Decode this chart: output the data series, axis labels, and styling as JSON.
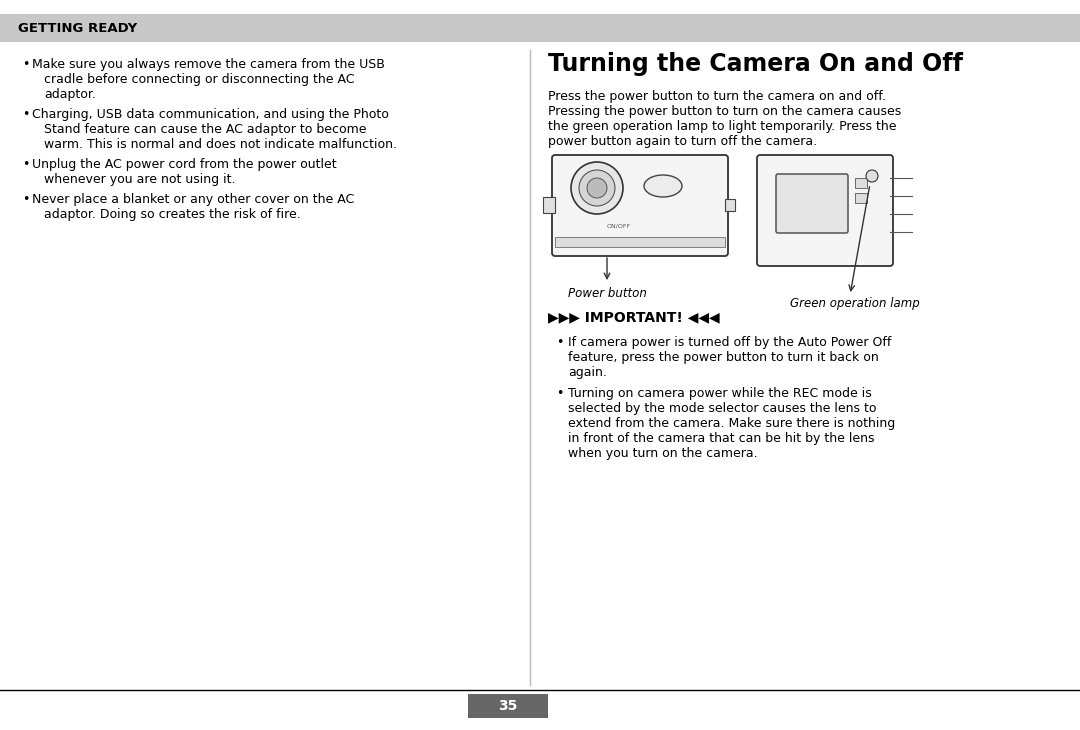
{
  "page_bg": "#ffffff",
  "header_bg": "#c8c8c8",
  "header_text": "GETTING READY",
  "header_text_color": "#000000",
  "divider_color": "#aaaaaa",
  "right_title": "Turning the Camera On and Off",
  "right_intro": "Press the power button to turn the camera on and off.\nPressing the power button to turn on the camera causes\nthe green operation lamp to light temporarily. Press the\npower button again to turn off the camera.",
  "caption_left": "Power button",
  "caption_right": "Green operation lamp",
  "important_title": "IMPORTANT!",
  "page_number": "35",
  "left_bullet1_line1": "Make sure you always remove the camera from the USB",
  "left_bullet1_line2": "cradle before connecting or disconnecting the AC",
  "left_bullet1_line3": "adaptor.",
  "left_bullet2_line1": "Charging, USB data communication, and using the Photo",
  "left_bullet2_line2": "Stand feature can cause the AC adaptor to become",
  "left_bullet2_line3": "warm. This is normal and does not indicate malfunction.",
  "left_bullet3_line1": "Unplug the AC power cord from the power outlet",
  "left_bullet3_line2": "whenever you are not using it.",
  "left_bullet4_line1": "Never place a blanket or any other cover on the AC",
  "left_bullet4_line2": "adaptor. Doing so creates the risk of fire.",
  "imp_bullet1_line1": "If camera power is turned off by the Auto Power Off",
  "imp_bullet1_line2": "feature, press the power button to turn it back on",
  "imp_bullet1_line3": "again.",
  "imp_bullet2_line1": "Turning on camera power while the REC mode is",
  "imp_bullet2_line2": "selected by the mode selector causes the lens to",
  "imp_bullet2_line3": "extend from the camera. Make sure there is nothing",
  "imp_bullet2_line4": "in front of the camera that can be hit by the lens",
  "imp_bullet2_line5": "when you turn on the camera."
}
